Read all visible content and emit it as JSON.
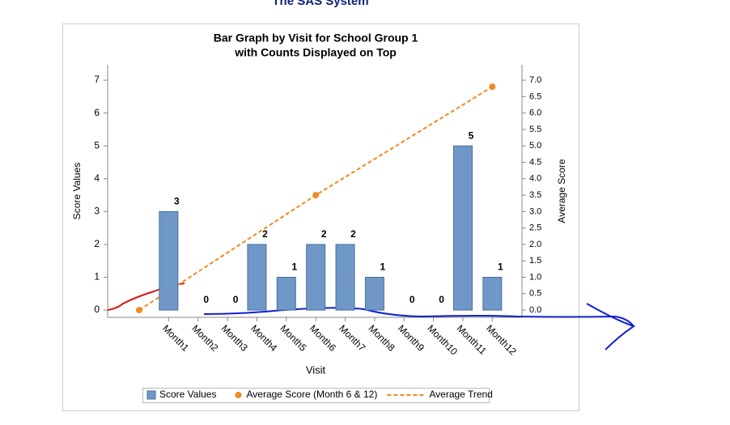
{
  "page_title": "The SAS System",
  "chart_data": {
    "type": "bar",
    "title": "Bar Graph by Visit for School Group 1",
    "subtitle": "with Counts Displayed on Top",
    "x_label": "Visit",
    "y_label": "Score Values",
    "y2_label": "Average Score",
    "categories": [
      null,
      "Month1",
      "Month2",
      "Month3",
      "Month4",
      "Month5",
      "Month6",
      "Month7",
      "Month8",
      "Month9",
      "Month10",
      "Month11",
      "Month12"
    ],
    "series": [
      {
        "name": "Score Values",
        "type": "bar",
        "color": "#6f98c9",
        "values": [
          null,
          3,
          0,
          0,
          2,
          1,
          2,
          2,
          1,
          0,
          0,
          5,
          1
        ]
      },
      {
        "name": "Average Score (Month 6 & 12)",
        "type": "scatter",
        "axis": "y2",
        "color": "#f08a24",
        "x": [
          0,
          6,
          12
        ],
        "values": [
          0,
          3.5,
          6.8
        ]
      },
      {
        "name": "Average Trend",
        "type": "line",
        "axis": "y2",
        "color": "#f08a24",
        "x": [
          0,
          6,
          12
        ],
        "values": [
          0,
          3.5,
          6.8
        ]
      }
    ],
    "ylim": [
      -0.22,
      7.47
    ],
    "yticks": [
      0,
      1,
      2,
      3,
      4,
      5,
      6,
      7
    ],
    "y2lim": [
      -0.22,
      7.47
    ],
    "y2ticks": [
      {
        "value": 0,
        "label": "0.0"
      },
      {
        "value": 0.5,
        "label": "0.5"
      },
      {
        "value": 1,
        "label": "1.0"
      },
      {
        "value": 1.5,
        "label": "1.5"
      },
      {
        "value": 2,
        "label": "2.0"
      },
      {
        "value": 2.5,
        "label": "2.5"
      },
      {
        "value": 3,
        "label": "3.0"
      },
      {
        "value": 3.5,
        "label": "3.5"
      },
      {
        "value": 4,
        "label": "4.0"
      },
      {
        "value": 4.5,
        "label": "4.5"
      },
      {
        "value": 5,
        "label": "5.0"
      },
      {
        "value": 5.5,
        "label": "5.5"
      },
      {
        "value": 6,
        "label": "6.0"
      },
      {
        "value": 6.5,
        "label": "6.5"
      },
      {
        "value": 7,
        "label": "7.0"
      }
    ],
    "grid": false,
    "legend": "bottom"
  }
}
